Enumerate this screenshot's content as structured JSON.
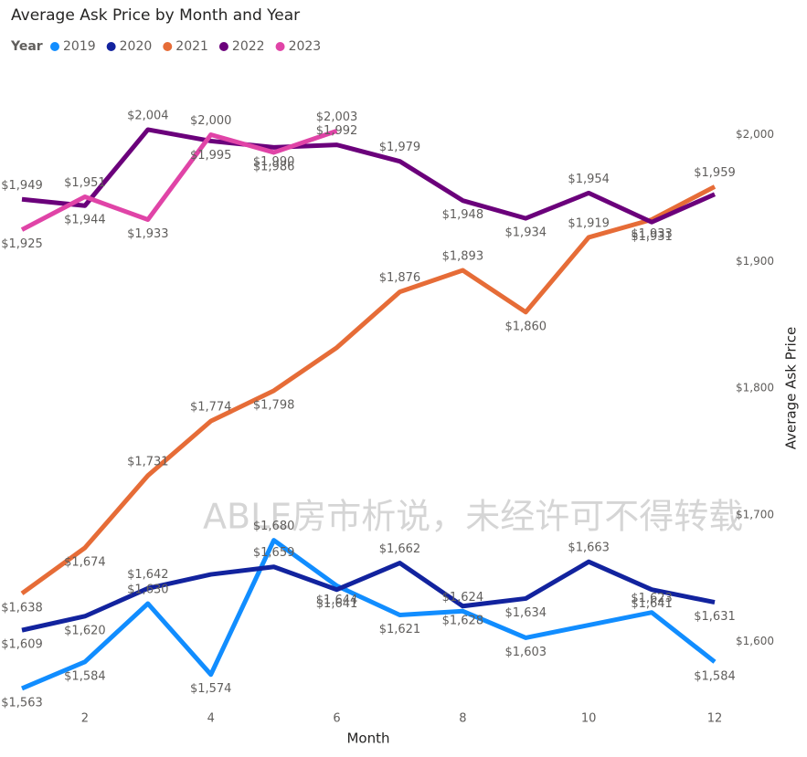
{
  "chart_data": {
    "type": "line",
    "title": "Average Ask Price by Month and Year",
    "legend_title": "Year",
    "x_label": "Month",
    "y_label": "Average Ask Price",
    "watermark": "ABLE房市析说，未经许可不得转载",
    "x": [
      1,
      2,
      3,
      4,
      5,
      6,
      7,
      8,
      9,
      10,
      11,
      12
    ],
    "xlim": [
      1,
      12
    ],
    "xticks": [
      2,
      4,
      6,
      8,
      10,
      12
    ],
    "ylim": [
      1550,
      2040
    ],
    "yticks": [
      {
        "value": 1600,
        "label": "$1,600"
      },
      {
        "value": 1700,
        "label": "$1,700"
      },
      {
        "value": 1800,
        "label": "$1,800"
      },
      {
        "value": 1900,
        "label": "$1,900"
      },
      {
        "value": 2000,
        "label": "$2,000"
      }
    ],
    "y_axis_side": "right",
    "series": [
      {
        "name": "2019",
        "color": "#118dff",
        "values": [
          1563,
          1584,
          1630,
          1574,
          1680,
          1644,
          1621,
          1624,
          1603,
          1613,
          1623,
          1584
        ],
        "value_labels": [
          "$1,563",
          "$1,584",
          "$1,630",
          "$1,574",
          "$1,680",
          "$1,644",
          "$1,621",
          "$1,624",
          "$1,603",
          null,
          "$1,623",
          "$1,584"
        ]
      },
      {
        "name": "2020",
        "color": "#12239e",
        "values": [
          1609,
          1620,
          1642,
          1653,
          1659,
          1641,
          1662,
          1628,
          1634,
          1663,
          1641,
          1631
        ],
        "value_labels": [
          "$1,609",
          "$1,620",
          "$1,642",
          null,
          "$1,659",
          "$1,641",
          "$1,662",
          "$1,628",
          "$1,634",
          "$1,663",
          "$1,641",
          "$1,631"
        ]
      },
      {
        "name": "2021",
        "color": "#e66c37",
        "values": [
          1638,
          1674,
          1731,
          1774,
          1798,
          1832,
          1876,
          1893,
          1860,
          1919,
          1933,
          1959
        ],
        "value_labels": [
          "$1,638",
          "$1,674",
          "$1,731",
          "$1,774",
          "$1,798",
          null,
          "$1,876",
          "$1,893",
          "$1,860",
          "$1,919",
          "$1,933",
          "$1,959"
        ]
      },
      {
        "name": "2022",
        "color": "#6b007b",
        "values": [
          1949,
          1944,
          2004,
          1995,
          1990,
          1992,
          1979,
          1948,
          1934,
          1954,
          1931,
          1953
        ],
        "value_labels": [
          "$1,949",
          "$1,944",
          "$2,004",
          "$1,995",
          "$1,990",
          "$1,992",
          "$1,979",
          "$1,948",
          "$1,934",
          "$1,954",
          "$1,931",
          null
        ]
      },
      {
        "name": "2023",
        "color": "#e044a7",
        "values": [
          1925,
          1951,
          1933,
          2000,
          1986,
          2003,
          null,
          null,
          null,
          null,
          null,
          null
        ],
        "value_labels": [
          "$1,925",
          "$1,951",
          "$1,933",
          "$2,000",
          "$1,986",
          "$2,003",
          null,
          null,
          null,
          null,
          null,
          null
        ]
      }
    ]
  }
}
